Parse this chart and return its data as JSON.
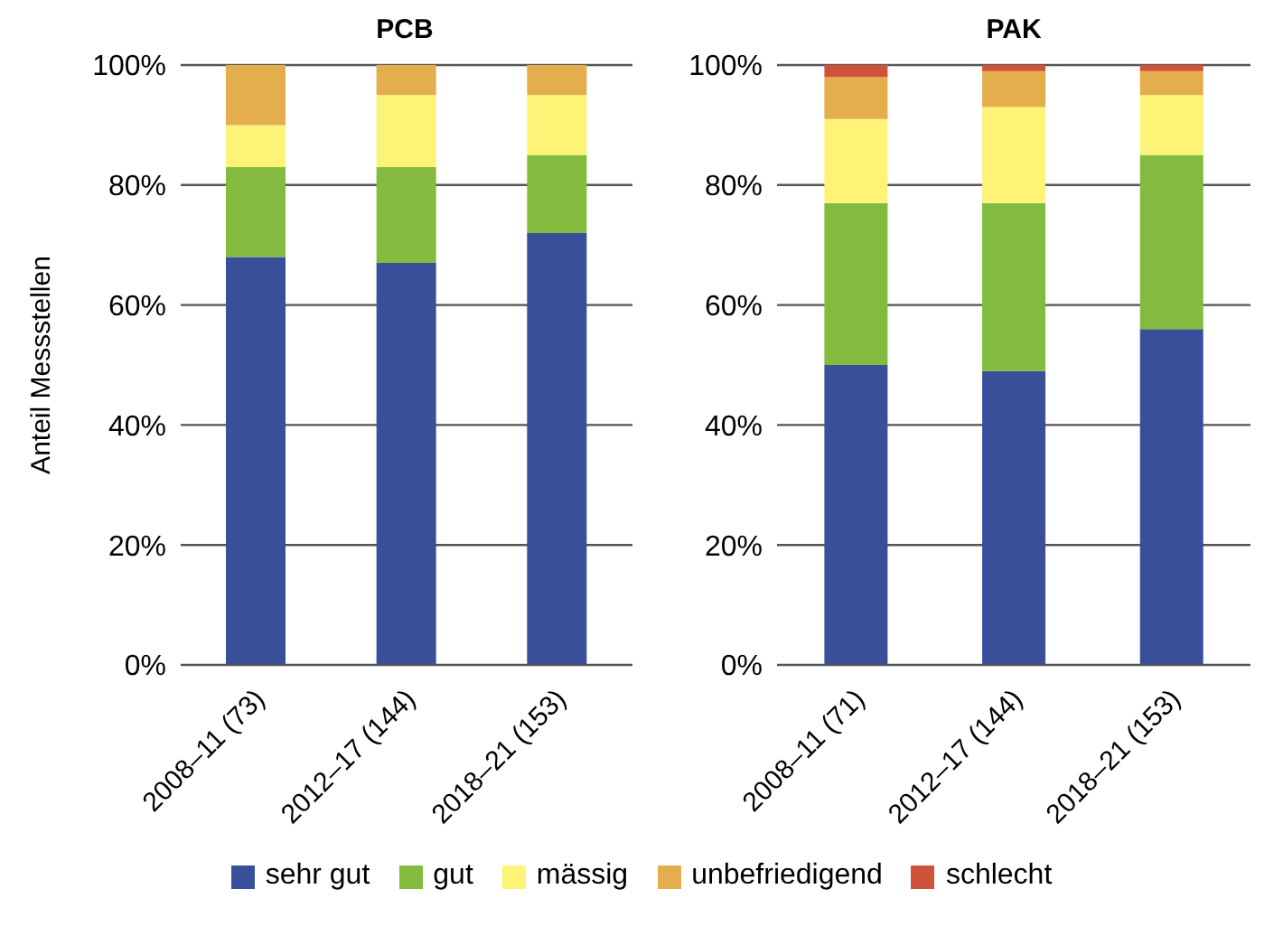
{
  "chart_data": [
    {
      "type": "bar",
      "title": "PCB",
      "ylabel": "Anteil Messstellen",
      "stacked": true,
      "grid": "y",
      "legend": "bottom",
      "categories": [
        "2008–11 (73)",
        "2012–17 (144)",
        "2018–21 (153)"
      ],
      "ylim": [
        0,
        100
      ],
      "yticks": [
        {
          "value": 0,
          "label": "0%"
        },
        {
          "value": 20,
          "label": "20%"
        },
        {
          "value": 40,
          "label": "40%"
        },
        {
          "value": 60,
          "label": "60%"
        },
        {
          "value": 80,
          "label": "80%"
        },
        {
          "value": 100,
          "label": "100%"
        }
      ],
      "series": [
        {
          "name": "sehr gut",
          "color": "#3a4f9a",
          "values": [
            68,
            67,
            72
          ]
        },
        {
          "name": "gut",
          "color": "#82bb3e",
          "values": [
            15,
            16,
            13
          ]
        },
        {
          "name": "mässig",
          "color": "#fdf477",
          "values": [
            7,
            12,
            10
          ]
        },
        {
          "name": "unbefriedigend",
          "color": "#e4ae4d",
          "values": [
            10,
            5,
            5
          ]
        },
        {
          "name": "schlecht",
          "color": "#d0523b",
          "values": [
            0,
            0,
            0
          ]
        }
      ]
    },
    {
      "type": "bar",
      "title": "PAK",
      "stacked": true,
      "grid": "y",
      "categories": [
        "2008–11 (71)",
        "2012–17 (144)",
        "2018–21 (153)"
      ],
      "ylim": [
        0,
        100
      ],
      "yticks": [
        {
          "value": 0,
          "label": "0%"
        },
        {
          "value": 20,
          "label": "20%"
        },
        {
          "value": 40,
          "label": "40%"
        },
        {
          "value": 60,
          "label": "60%"
        },
        {
          "value": 80,
          "label": "80%"
        },
        {
          "value": 100,
          "label": "100%"
        }
      ],
      "series": [
        {
          "color": "#3a4f9a",
          "values": [
            50,
            49,
            56
          ]
        },
        {
          "color": "#82bb3e",
          "values": [
            27,
            28,
            29
          ]
        },
        {
          "color": "#fdf477",
          "values": [
            14,
            16,
            10
          ]
        },
        {
          "color": "#e4ae4d",
          "values": [
            7,
            6,
            4
          ]
        },
        {
          "color": "#d0523b",
          "values": [
            2,
            1,
            1
          ]
        }
      ]
    }
  ]
}
